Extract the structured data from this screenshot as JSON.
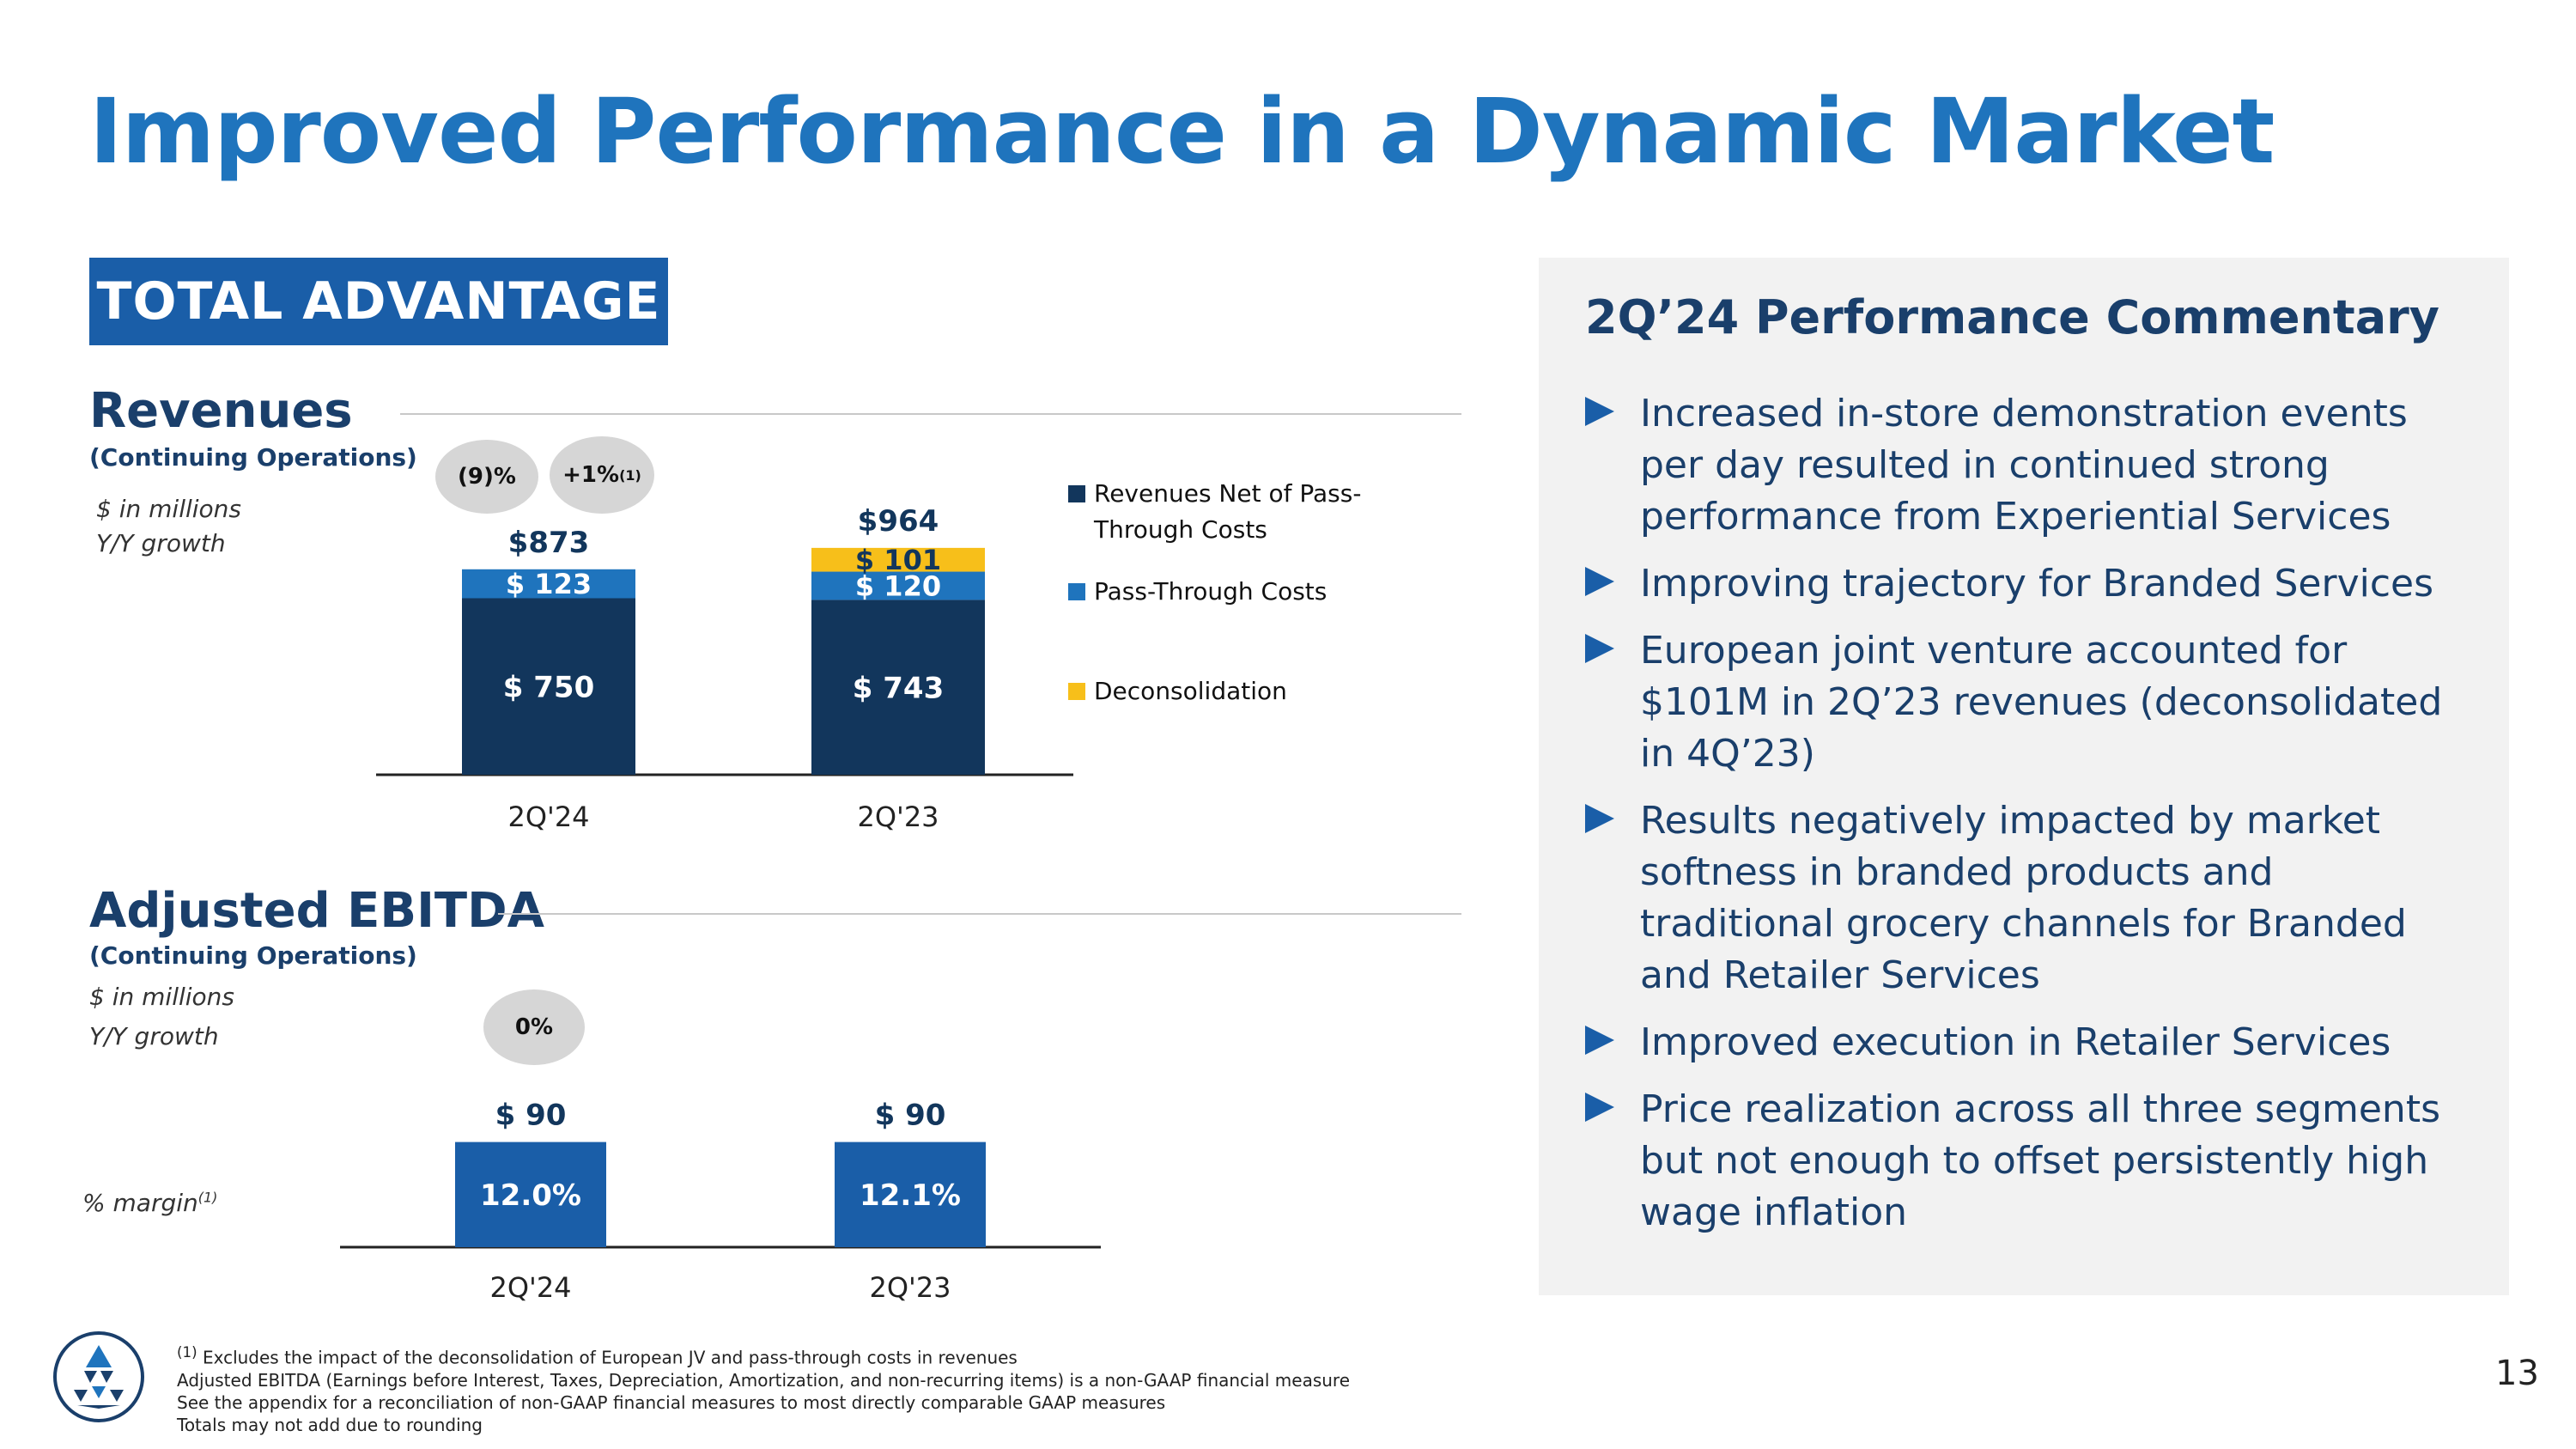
{
  "title": "Improved Performance in a Dynamic Market",
  "banner": "TOTAL ADVANTAGE",
  "revenues": {
    "title": "Revenues",
    "subtitle": "(Continuing Operations)",
    "unit_note": "$ in millions",
    "growth_note": "Y/Y growth",
    "growth_bubbles": [
      {
        "text": "(9)%",
        "sup": ""
      },
      {
        "text": "+1%",
        "sup": "(1)"
      }
    ],
    "legend": [
      {
        "label": "Revenues Net of Pass-Through Costs",
        "color": "#12365c"
      },
      {
        "label": "Pass-Through Costs",
        "color": "#1f74bd"
      },
      {
        "label": "Deconsolidation",
        "color": "#f7bf1a"
      }
    ]
  },
  "ebitda": {
    "title": "Adjusted EBITDA",
    "subtitle": "(Continuing Operations)",
    "unit_note": "$ in millions",
    "growth_note": "Y/Y growth",
    "growth_bubble": "0%",
    "margin_label": "% margin",
    "margin_sup": "(1)"
  },
  "chart_data": [
    {
      "type": "bar",
      "stacked": true,
      "categories": [
        "2Q'24",
        "2Q'23"
      ],
      "totals": [
        "$873",
        "$964"
      ],
      "series": [
        {
          "name": "Revenues Net of Pass-Through Costs",
          "values": [
            750,
            743
          ],
          "labels": [
            "$ 750",
            "$ 743"
          ],
          "color": "#12365c"
        },
        {
          "name": "Pass-Through Costs",
          "values": [
            123,
            120
          ],
          "labels": [
            "$ 123",
            "$ 120"
          ],
          "color": "#1f74bd"
        },
        {
          "name": "Deconsolidation",
          "values": [
            0,
            101
          ],
          "labels": [
            "",
            "$ 101"
          ],
          "color": "#f7bf1a"
        }
      ]
    },
    {
      "type": "bar",
      "categories": [
        "2Q'24",
        "2Q'23"
      ],
      "values": [
        90,
        90
      ],
      "value_labels": [
        "$ 90",
        "$ 90"
      ],
      "margins": [
        "12.0%",
        "12.1%"
      ],
      "color": "#1a5ea8"
    }
  ],
  "commentary": {
    "title": "2Q’24 Performance Commentary",
    "bullets": [
      "Increased in-store demonstration events per day resulted in continued strong performance from Experiential Services",
      "Improving trajectory for Branded Services",
      "European joint venture accounted for $101M in 2Q’23 revenues (deconsolidated in 4Q’23)",
      "Results negatively impacted by market softness in branded products and traditional grocery channels for Branded and Retailer Services",
      "Improved execution in Retailer Services",
      "Price realization across all three segments but not enough to offset persistently high wage inflation"
    ]
  },
  "footnotes": {
    "sup": "(1)",
    "first": " Excludes the impact of the deconsolidation of European JV and pass-through costs in revenues",
    "lines": [
      "Adjusted EBITDA (Earnings before Interest, Taxes, Depreciation, Amortization, and non-recurring items) is a non-GAAP financial measure",
      "See the appendix for a reconciliation of non-GAAP financial measures to most directly comparable GAAP measures",
      "Totals may not add due to rounding"
    ]
  },
  "page_number": "13"
}
